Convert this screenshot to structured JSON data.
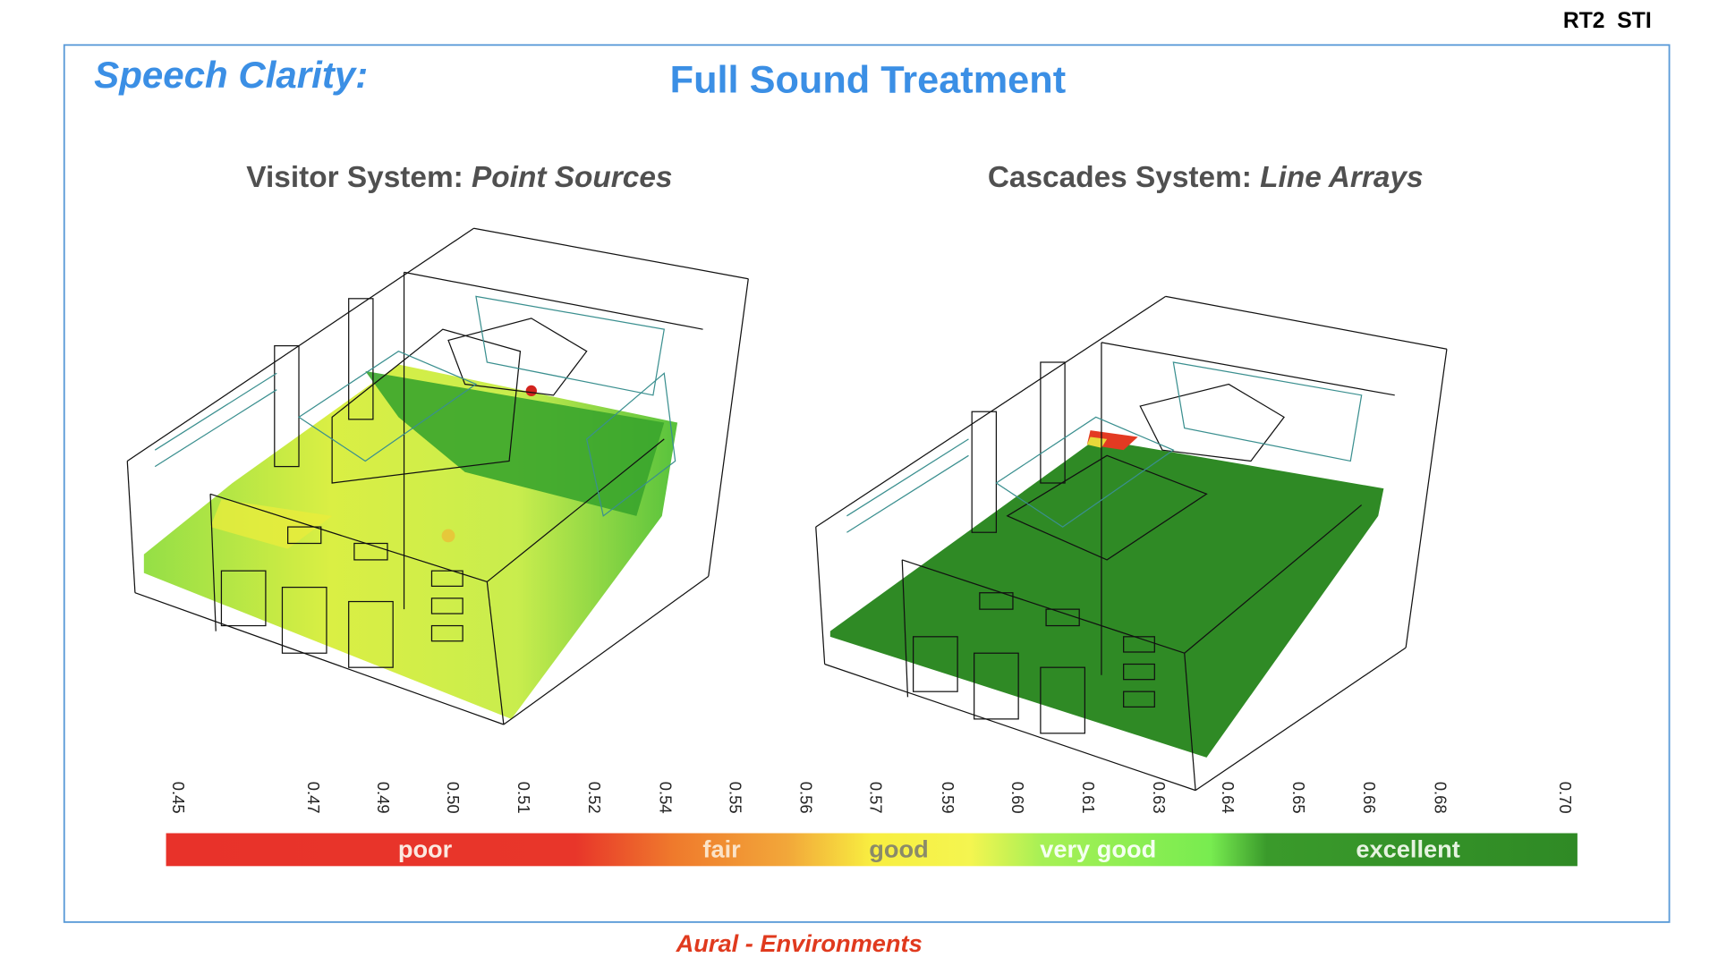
{
  "header": {
    "tag": "RT2  STI",
    "title": "Speech Clarity:",
    "subtitle": "Full Sound Treatment"
  },
  "panels": [
    {
      "label": "Visitor System: ",
      "emphasis": "Point Sources"
    },
    {
      "label": "Cascades System: ",
      "emphasis": "Line Arrays"
    }
  ],
  "scale": {
    "ticks": [
      "0.45",
      "0.47",
      "0.49",
      "0.50",
      "0.51",
      "0.52",
      "0.54",
      "0.55",
      "0.56",
      "0.57",
      "0.59",
      "0.60",
      "0.61",
      "0.63",
      "0.64",
      "0.65",
      "0.66",
      "0.68",
      "0.70"
    ],
    "ratings": [
      "poor",
      "fair",
      "good",
      "very good",
      "excellent"
    ]
  },
  "footer": "Aural - Environments"
}
